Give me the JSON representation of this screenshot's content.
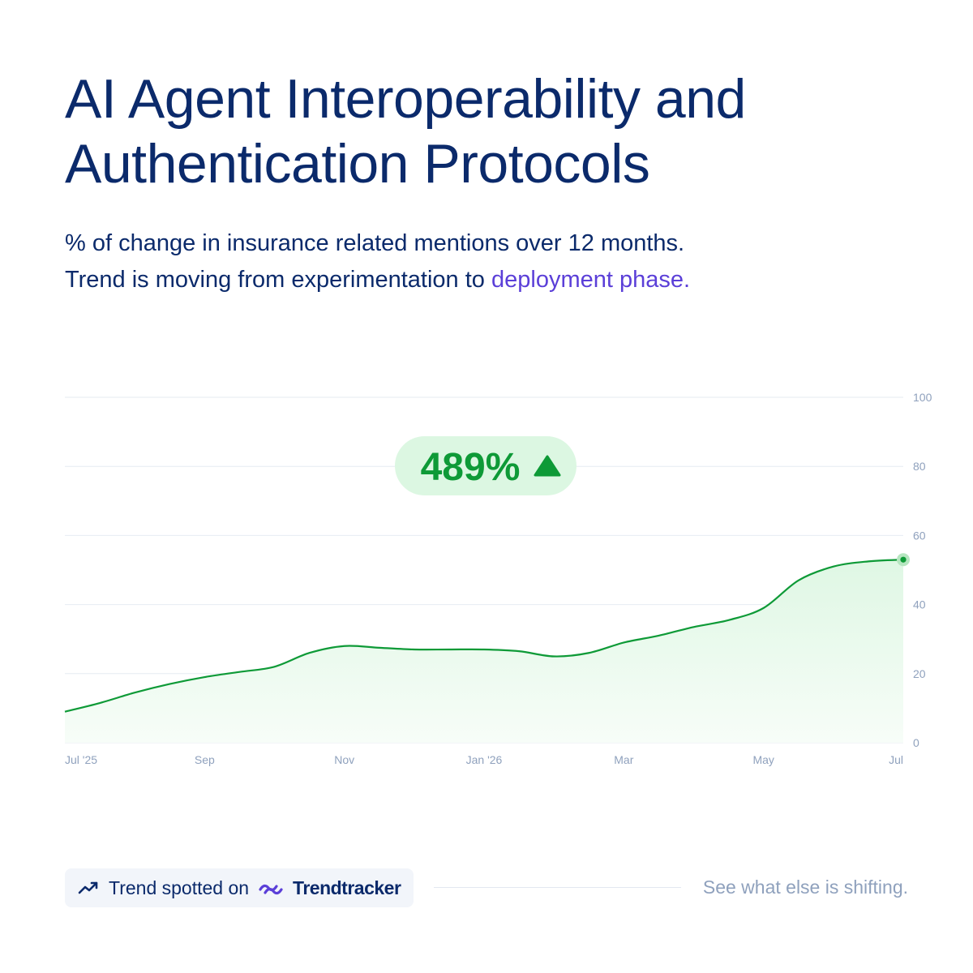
{
  "header": {
    "title": "AI Agent Interoperability and Authentication Protocols",
    "subtitle_line1": "% of change in insurance related mentions over 12 months.",
    "subtitle_line2_plain": "Trend is moving from experimentation to ",
    "subtitle_line2_accent": "deployment phase."
  },
  "badge": {
    "value": "489%",
    "direction_icon": "triangle-up-icon"
  },
  "chart_data": {
    "type": "area",
    "x_tick_labels": [
      "Jul '25",
      "Sep",
      "Nov",
      "Jan '26",
      "Mar",
      "May",
      "Jul"
    ],
    "x_tick_positions": [
      0,
      2,
      4,
      6,
      8,
      10,
      12
    ],
    "y_ticks": [
      0,
      20,
      40,
      60,
      80,
      100
    ],
    "ylim": [
      0,
      100
    ],
    "xlim": [
      0,
      12
    ],
    "grid": true,
    "y_axis_side": "right",
    "series": [
      {
        "x": [
          0,
          0.5,
          1,
          1.5,
          2,
          2.5,
          3,
          3.5,
          4,
          4.5,
          5,
          5.5,
          6,
          6.5,
          7,
          7.5,
          8,
          8.5,
          9,
          9.5,
          10,
          10.5,
          11,
          11.5,
          12
        ],
        "values": [
          9,
          11.5,
          14.5,
          17,
          19,
          20.5,
          22,
          26,
          28,
          27.5,
          27,
          27,
          27,
          26.5,
          25,
          26,
          29,
          31,
          33.5,
          35.5,
          39,
          47,
          51,
          52.5,
          53
        ]
      }
    ],
    "colors": {
      "line": "#0e9a37",
      "fill_top": "#dff7e4",
      "endpoint_halo": "#b6e6c0",
      "grid": "#e6ebf2",
      "tick_text": "#8fa1bd"
    }
  },
  "footer": {
    "trend_icon": "trending-up-icon",
    "label": "Trend spotted on",
    "brand_logo": "trendtracker-logo-icon",
    "brand": "Trendtracker",
    "cta": "See what else is shifting."
  },
  "colors": {
    "title": "#0b2a6b",
    "accent": "#5b3fd8",
    "badge_bg": "#dcf7e2",
    "badge_text": "#0e9a37"
  }
}
